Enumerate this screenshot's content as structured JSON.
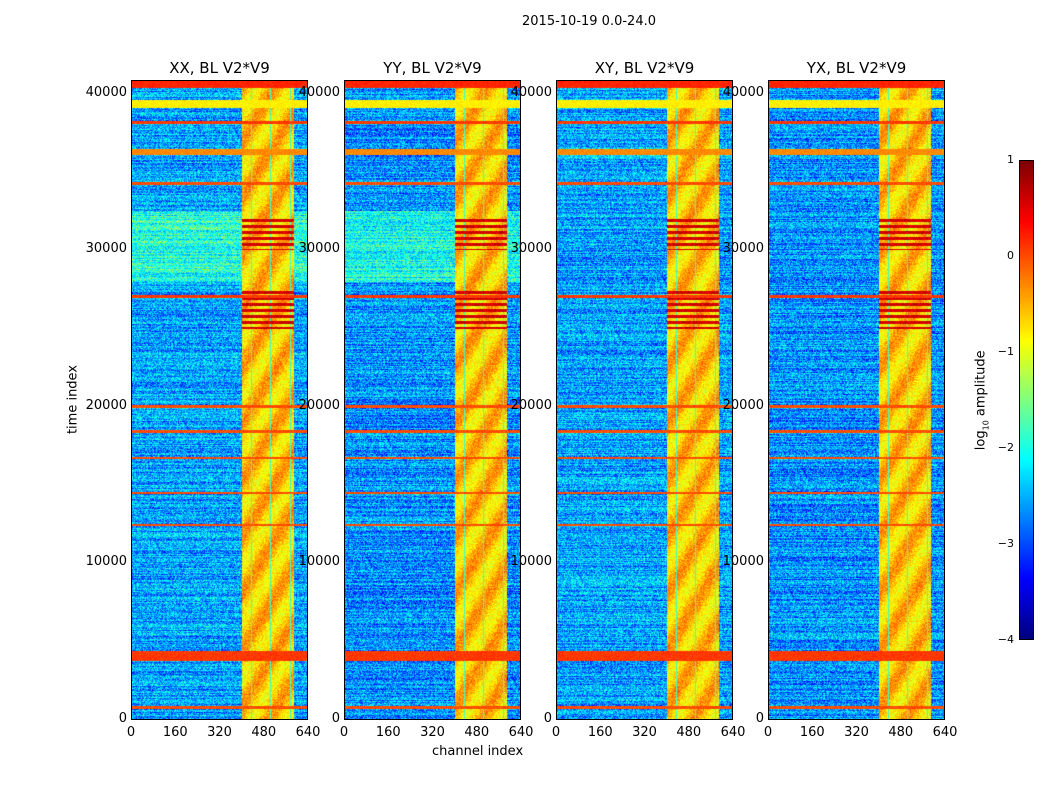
{
  "title": "2015-10-19 0.0-24.0",
  "chart_data": {
    "type": "heatmap",
    "panels": [
      {
        "title": "XX, BL V2*V9"
      },
      {
        "title": "YY, BL V2*V9"
      },
      {
        "title": "XY, BL V2*V9"
      },
      {
        "title": "YX, BL V2*V9"
      }
    ],
    "xlabel": "channel index",
    "ylabel": "time index",
    "xlim": [
      0,
      640
    ],
    "ylim": [
      0,
      40800
    ],
    "xticks": [
      0,
      160,
      320,
      480,
      640
    ],
    "yticks": [
      0,
      10000,
      20000,
      30000,
      40000
    ],
    "colorbar": {
      "label": "log10 amplitude",
      "label_main": "log",
      "label_sub": "10",
      "label_rest": " amplitude",
      "range": [
        -4,
        1
      ],
      "ticks": [
        1,
        0,
        -1,
        -2,
        -3,
        -4
      ],
      "tick_labels": [
        "1",
        "0",
        "−1",
        "−2",
        "−3",
        "−4"
      ],
      "colormap": "jet"
    },
    "bright_channel_range": [
      400,
      590
    ],
    "flagged_time_bands": [
      [
        40400,
        40800,
        0.2
      ],
      [
        39100,
        39600,
        -0.8
      ],
      [
        38100,
        38300,
        0.1
      ],
      [
        36100,
        36500,
        -0.3
      ],
      [
        34150,
        34350,
        0.0
      ],
      [
        26950,
        27150,
        0.1
      ],
      [
        19950,
        20100,
        0.0
      ],
      [
        18350,
        18500,
        0.0
      ],
      [
        16650,
        16780,
        0.0
      ],
      [
        14400,
        14550,
        0.0
      ],
      [
        12380,
        12500,
        0.0
      ],
      [
        3760,
        4400,
        0.1
      ],
      [
        700,
        850,
        0.0
      ]
    ],
    "strong_time_ranges": [
      [
        30000,
        32200
      ],
      [
        25000,
        27500
      ]
    ]
  }
}
